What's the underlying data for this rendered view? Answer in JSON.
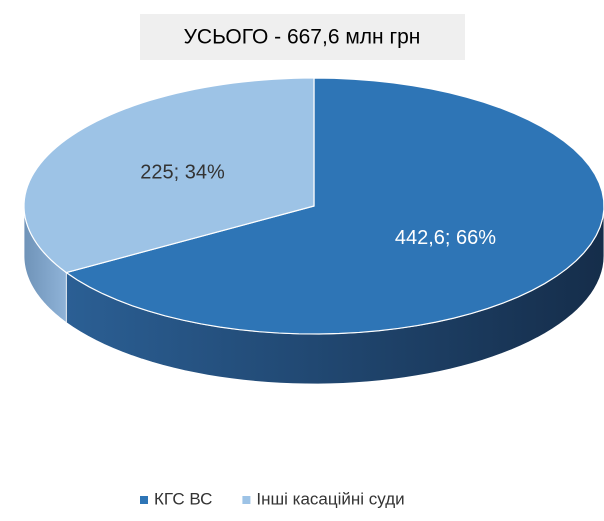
{
  "chart_data": {
    "type": "pie",
    "title": "УСЬОГО - 667,6 млн грн",
    "categories": [
      "КГС ВС",
      "Інші касаційні суди"
    ],
    "values": [
      442.6,
      225
    ],
    "value_labels": [
      "442,6; 66%",
      "225; 34%"
    ],
    "colors": [
      "#2e75b6",
      "#9dc3e6"
    ],
    "legend": "bottom"
  }
}
